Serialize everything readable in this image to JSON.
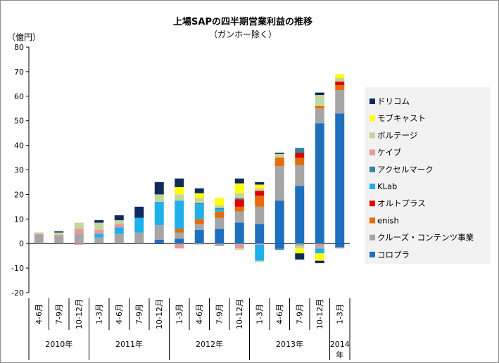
{
  "chart_data": {
    "type": "bar",
    "stacked": true,
    "title": "上場SAPの四半期営業利益の推移",
    "subtitle": "（ガンホー除く）",
    "ylabel": "（億円）",
    "ylim": [
      -20,
      80
    ],
    "yticks": [
      -20,
      -10,
      0,
      10,
      20,
      30,
      40,
      50,
      60,
      70,
      80
    ],
    "grid": false,
    "legend_position": "right",
    "categories": [
      "4-6月",
      "7-9月",
      "10-12月",
      "1-3月",
      "4-6月",
      "7-9月",
      "10-12月",
      "1-3月",
      "4-6月",
      "7-9月",
      "10-12月",
      "1-3月",
      "4-6月",
      "7-9月",
      "10-12月",
      "1-3月"
    ],
    "year_groups": [
      {
        "label": "2010年",
        "count": 3
      },
      {
        "label": "2011年",
        "count": 4
      },
      {
        "label": "2012年",
        "count": 4
      },
      {
        "label": "2013年",
        "count": 4
      },
      {
        "label": "2014年",
        "count": 1
      }
    ],
    "series": [
      {
        "name": "コロプラ",
        "color": "#1f6fbf",
        "values": [
          0,
          0,
          0,
          0,
          0,
          0,
          1.5,
          2,
          5.5,
          6,
          8.5,
          8,
          17.5,
          23.5,
          49,
          53
        ]
      },
      {
        "name": "クルーズ・コンテンツ事業",
        "color": "#a6a6a6",
        "values": [
          3.5,
          3,
          4,
          2.5,
          4,
          4.5,
          6,
          2.5,
          2.5,
          4.5,
          4.5,
          7,
          14,
          8.5,
          6,
          9.5
        ]
      },
      {
        "name": "enish",
        "color": "#e46c0a",
        "values": [
          0,
          0,
          0,
          0,
          0,
          0,
          0,
          1.5,
          2,
          2.5,
          2,
          4.5,
          3.5,
          3,
          1,
          2
        ]
      },
      {
        "name": "オルトプラス",
        "color": "#e00000",
        "values": [
          0,
          0,
          0,
          0,
          0,
          0,
          0,
          0,
          0,
          0,
          3,
          2,
          0,
          2,
          0,
          1.5
        ]
      },
      {
        "name": "KLab",
        "color": "#1fb0ea",
        "values": [
          0,
          0,
          0,
          1.5,
          2.5,
          6,
          9.5,
          11.5,
          6,
          1,
          0,
          0,
          0,
          0,
          0,
          0
        ]
      },
      {
        "name": "アクセルマーク",
        "color": "#31859c",
        "values": [
          0,
          0,
          0,
          0,
          0,
          0,
          0,
          0,
          0.5,
          0.5,
          0.5,
          0,
          0,
          2,
          0,
          0
        ]
      },
      {
        "name": "ケイブ",
        "color": "#e6989a",
        "values": [
          0.5,
          0.5,
          2,
          1.5,
          1.5,
          0,
          0,
          0,
          0,
          0,
          0,
          0,
          0,
          0,
          0,
          0
        ]
      },
      {
        "name": "ボルテージ",
        "color": "#c3d69b",
        "values": [
          0.5,
          1,
          2.5,
          3,
          1.5,
          0,
          3,
          2.5,
          2,
          1,
          2,
          1,
          1.5,
          0,
          4.5,
          1.5
        ]
      },
      {
        "name": "モブキャスト",
        "color": "#ffff00",
        "values": [
          0,
          0,
          0,
          0,
          0,
          0,
          0,
          3,
          2,
          3,
          4,
          1.5,
          0,
          0,
          0,
          1.5
        ]
      },
      {
        "name": "ドリコム",
        "color": "#0f2a5c",
        "values": [
          0,
          0.5,
          0,
          1,
          2,
          4.5,
          5,
          3.5,
          2,
          0,
          2,
          1,
          0.5,
          0,
          1,
          0
        ]
      }
    ],
    "negative_series": [
      {
        "name": "コロプラ",
        "values": [
          0,
          0,
          0,
          0,
          0,
          0,
          0,
          0,
          0,
          0,
          0,
          0,
          -2,
          0,
          0,
          -1.5
        ]
      },
      {
        "name": "クルーズ・コンテンツ事業",
        "values": [
          0,
          0,
          0,
          0,
          0,
          0,
          0,
          -0.5,
          0,
          -1,
          -0.5,
          0,
          0,
          -1,
          -1,
          -0.5
        ]
      },
      {
        "name": "ケイブ",
        "values": [
          0,
          0,
          -0.5,
          0,
          0,
          0,
          0,
          -1.5,
          0,
          0,
          -1.5,
          -0.5,
          0,
          0,
          -1,
          0
        ]
      },
      {
        "name": "KLab",
        "values": [
          0,
          0,
          0,
          0,
          0,
          0,
          0,
          0,
          0,
          0,
          0,
          -6.5,
          0,
          0,
          -2,
          0
        ]
      },
      {
        "name": "ボルテージ",
        "values": [
          0,
          0,
          0,
          0,
          0,
          0,
          0,
          0,
          -0.5,
          0,
          -0.5,
          -0.5,
          0,
          -1,
          0,
          0
        ]
      },
      {
        "name": "モブキャスト",
        "values": [
          0,
          0,
          0,
          0,
          0,
          0,
          0,
          0,
          0,
          0,
          0,
          0,
          0,
          -2,
          -3,
          0
        ]
      },
      {
        "name": "アクセルマーク",
        "values": [
          0,
          0,
          0,
          0,
          0,
          0,
          0,
          0,
          0,
          0,
          0,
          0,
          -0.5,
          0,
          0,
          0
        ]
      },
      {
        "name": "ドリコム",
        "values": [
          0,
          0,
          0,
          0,
          0,
          0,
          0,
          0,
          0,
          0,
          0,
          0,
          0,
          -2.5,
          -1,
          0
        ]
      }
    ],
    "legend_order": [
      "ドリコム",
      "モブキャスト",
      "ボルテージ",
      "ケイブ",
      "アクセルマーク",
      "KLab",
      "オルトプラス",
      "enish",
      "クルーズ・コンテンツ事業",
      "コロプラ"
    ]
  }
}
